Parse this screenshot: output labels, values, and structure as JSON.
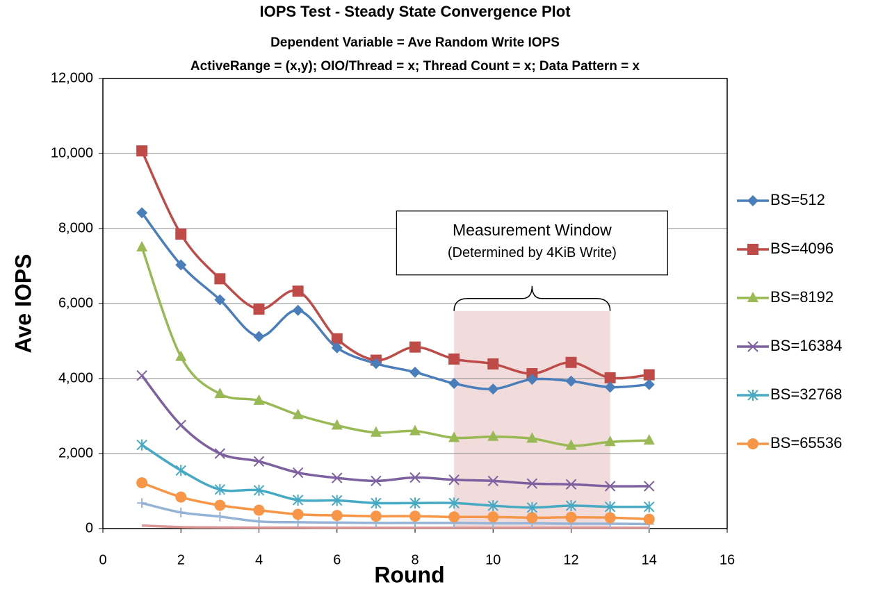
{
  "chart_data": {
    "type": "line",
    "title": "IOPS Test - Steady State Convergence Plot",
    "subtitle": [
      "Dependent Variable = Ave Random Write IOPS",
      "ActiveRange = (x,y); OIO/Thread = x; Thread Count = x; Data Pattern = x"
    ],
    "x_label": "Round",
    "y_label": "Ave IOPS",
    "x": [
      1,
      2,
      3,
      4,
      5,
      6,
      7,
      8,
      9,
      10,
      11,
      12,
      13,
      14
    ],
    "series": [
      {
        "name": "BS=512",
        "color": "#4a7ebb",
        "marker": "diamond",
        "values": [
          8420,
          7030,
          6100,
          5120,
          5820,
          4820,
          4400,
          4170,
          3870,
          3720,
          3980,
          3930,
          3770,
          3840
        ]
      },
      {
        "name": "BS=4096",
        "color": "#be4b48",
        "marker": "square",
        "values": [
          10070,
          7850,
          6660,
          5850,
          6330,
          5060,
          4490,
          4840,
          4520,
          4390,
          4130,
          4430,
          4020,
          4100
        ]
      },
      {
        "name": "BS=8192",
        "color": "#98b954",
        "marker": "triangle",
        "values": [
          7500,
          4580,
          3590,
          3410,
          3030,
          2750,
          2560,
          2600,
          2420,
          2450,
          2400,
          2210,
          2310,
          2350
        ]
      },
      {
        "name": "BS=16384",
        "color": "#7d60a0",
        "marker": "x",
        "values": [
          4080,
          2760,
          2000,
          1790,
          1490,
          1350,
          1270,
          1360,
          1300,
          1270,
          1200,
          1180,
          1130,
          1130
        ]
      },
      {
        "name": "BS=32768",
        "color": "#46aac5",
        "marker": "star",
        "values": [
          2230,
          1550,
          1040,
          1020,
          760,
          750,
          680,
          680,
          680,
          610,
          560,
          610,
          580,
          580
        ]
      },
      {
        "name": "BS=65536",
        "color": "#f79646",
        "marker": "circle",
        "values": [
          1220,
          840,
          620,
          490,
          380,
          350,
          330,
          330,
          310,
          310,
          290,
          300,
          290,
          250
        ]
      },
      {
        "color": "#95b3d7",
        "marker": "plus",
        "values": [
          680,
          430,
          320,
          190,
          170,
          160,
          150,
          150,
          150,
          140,
          140,
          130,
          130,
          120
        ]
      },
      {
        "color": "#d99694",
        "marker": "none",
        "values": [
          80,
          40,
          30,
          25,
          25,
          20,
          20,
          20,
          20,
          20,
          20,
          20,
          20,
          20
        ]
      }
    ],
    "annotation": {
      "text": [
        "Measurement Window",
        "(Determined by 4KiB Write)"
      ],
      "window_x": [
        9,
        13
      ],
      "window_y": [
        0,
        5800
      ],
      "color": "#f2dcdb"
    },
    "xlim": [
      0,
      16
    ],
    "xticks": [
      0,
      2,
      4,
      6,
      8,
      10,
      12,
      14,
      16
    ],
    "ylim": [
      0,
      12000
    ],
    "yticks": [
      0,
      {
        "value": 2000,
        "label": "2,000"
      },
      {
        "value": 4000,
        "label": "4,000"
      },
      {
        "value": 6000,
        "label": "6,000"
      },
      {
        "value": 8000,
        "label": "8,000"
      },
      {
        "value": 10000,
        "label": "10,000"
      },
      {
        "value": 12000,
        "label": "12,000"
      }
    ],
    "grid": true,
    "legend": "right"
  }
}
